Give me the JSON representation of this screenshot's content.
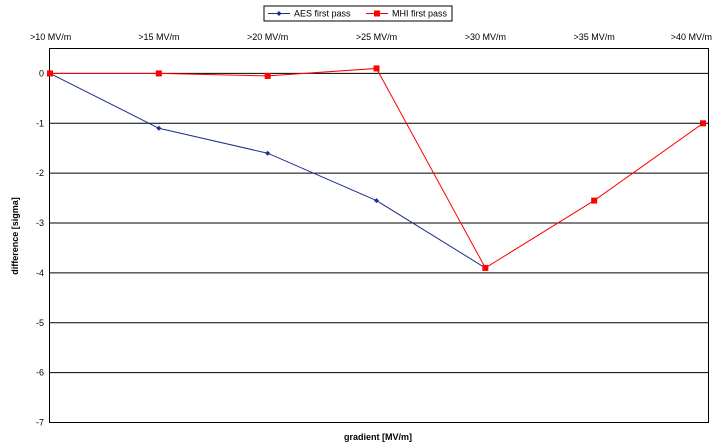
{
  "chart_data": {
    "type": "line",
    "categories": [
      ">10 MV/m",
      ">15 MV/m",
      ">20 MV/m",
      ">25 MV/m",
      ">30 MV/m",
      ">35 MV/m",
      ">40 MV/m"
    ],
    "series": [
      {
        "name": "AES first pass",
        "values": [
          0,
          -1.1,
          -1.6,
          -2.55,
          -3.9,
          null,
          null
        ],
        "color": "#1f2d8a",
        "marker": "diamond"
      },
      {
        "name": "MHI first pass",
        "values": [
          0,
          0,
          -0.05,
          0.1,
          -3.9,
          -2.55,
          -1.0
        ],
        "color": "#ff0000",
        "marker": "square"
      }
    ],
    "xlabel": "gradient [MV/m]",
    "ylabel": "difference [sigma]",
    "ylim": [
      -7,
      0.5
    ],
    "yticks": [
      0,
      -1,
      -2,
      -3,
      -4,
      -5,
      -6,
      -7
    ],
    "x_axis_position": "top",
    "grid": true,
    "legend_placement": "top-center"
  }
}
